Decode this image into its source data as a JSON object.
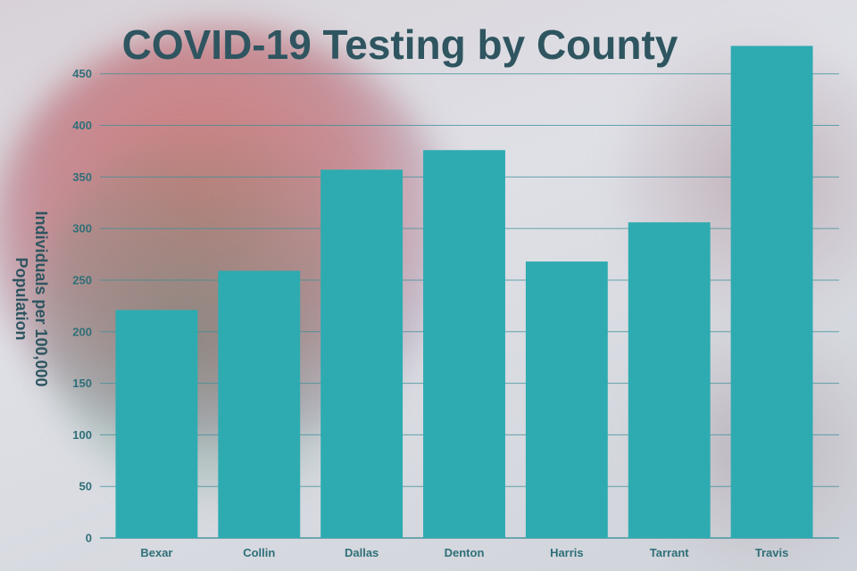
{
  "chart_data": {
    "type": "bar",
    "title": "COVID-19 Testing by County",
    "ylabel_lines": [
      "Individuals per 100,000",
      "Population"
    ],
    "xlabel": "",
    "categories": [
      "Bexar",
      "Collin",
      "Dallas",
      "Denton",
      "Harris",
      "Tarrant",
      "Travis"
    ],
    "values": [
      221,
      259,
      357,
      376,
      268,
      306,
      477
    ],
    "yticks": [
      0,
      50,
      100,
      150,
      200,
      250,
      300,
      350,
      400,
      450
    ],
    "ylim": [
      0,
      480
    ],
    "grid": true,
    "legend": "none",
    "colors": {
      "bar": "#2eabb1",
      "grid": "#3a8f98",
      "title": "#2e5560",
      "tick": "#2f6f78"
    }
  }
}
